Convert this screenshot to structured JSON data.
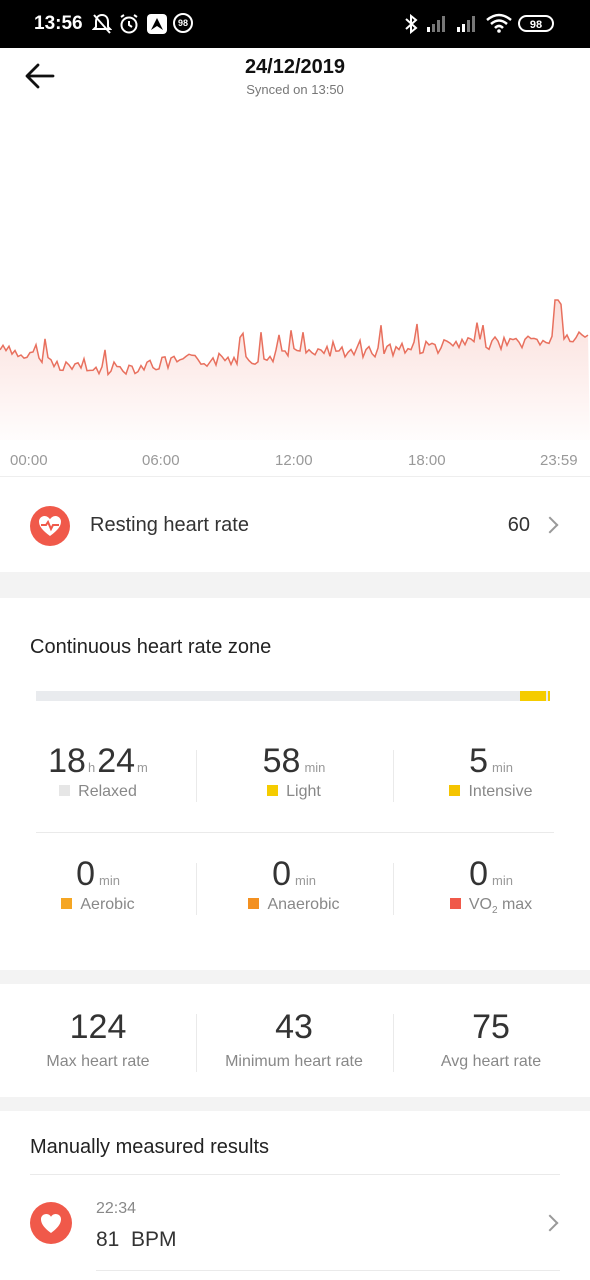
{
  "status_bar": {
    "time": "13:56",
    "notif_badge": "98",
    "battery": "98"
  },
  "header": {
    "date": "24/12/2019",
    "synced": "Synced on 13:50"
  },
  "chart_data": {
    "type": "area",
    "x_ticks": [
      "00:00",
      "06:00",
      "12:00",
      "18:00",
      "23:59"
    ],
    "color": "#e8705e"
  },
  "resting": {
    "label": "Resting heart rate",
    "value": "60"
  },
  "zone": {
    "title": "Continuous heart rate zone",
    "items": [
      {
        "value": "18",
        "unit": "h",
        "value2": "24",
        "unit2": "m",
        "label": "Relaxed",
        "color": "#e6e6e6"
      },
      {
        "value": "58",
        "unit": "min",
        "label": "Light",
        "color": "#f5cc00"
      },
      {
        "value": "5",
        "unit": "min",
        "label": "Intensive",
        "color": "#f5c400"
      },
      {
        "value": "0",
        "unit": "min",
        "label": "Aerobic",
        "color": "#f5a623"
      },
      {
        "value": "0",
        "unit": "min",
        "label": "Anaerobic",
        "color": "#f39020"
      },
      {
        "value": "0",
        "unit": "min",
        "label": "VO",
        "label_sub": "2",
        "label_tail": " max",
        "color": "#f0594a"
      }
    ]
  },
  "summary": [
    {
      "value": "124",
      "label": "Max heart rate"
    },
    {
      "value": "43",
      "label": "Minimum heart rate"
    },
    {
      "value": "75",
      "label": "Avg heart rate"
    }
  ],
  "manual": {
    "title": "Manually measured results",
    "items": [
      {
        "time": "22:34",
        "value": "81  BPM"
      }
    ]
  }
}
